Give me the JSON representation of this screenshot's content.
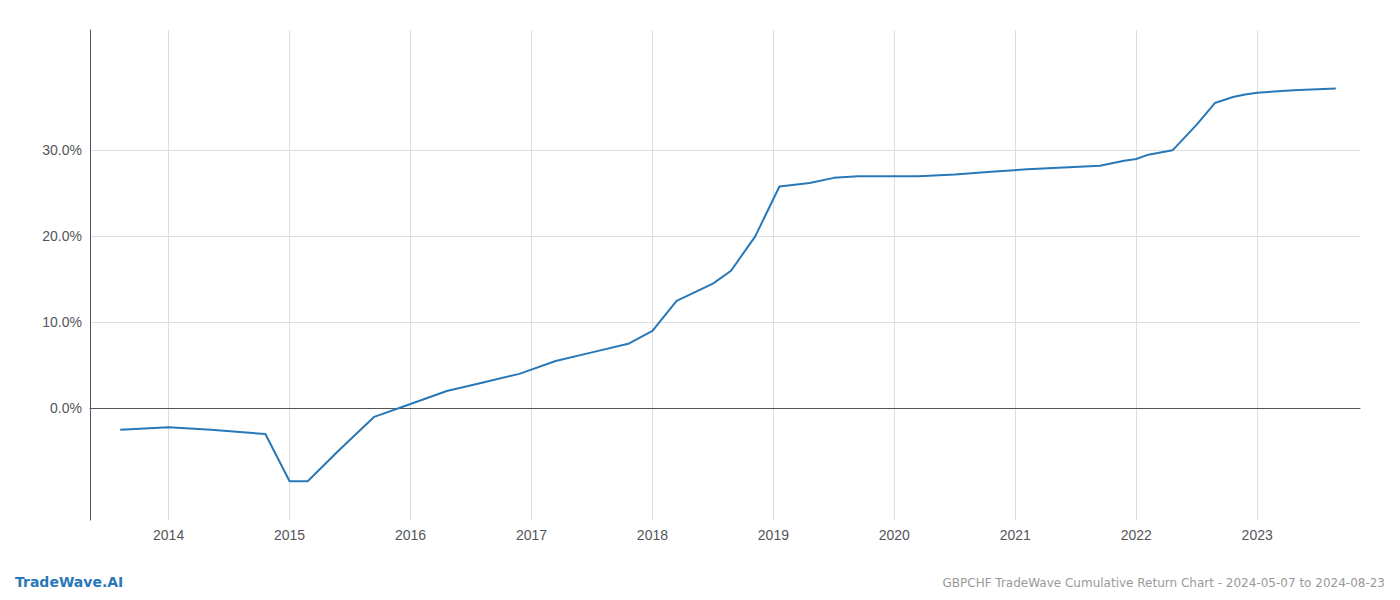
{
  "chart_data": {
    "type": "line",
    "title": "GBPCHF TradeWave Cumulative Return Chart - 2024-05-07 to 2024-08-23",
    "annotations": [
      "TradeWave.AI"
    ],
    "color": "#2878b8",
    "x": [
      2013.6,
      2014.0,
      2014.35,
      2014.8,
      2015.0,
      2015.15,
      2015.4,
      2015.7,
      2016.0,
      2016.3,
      2016.6,
      2016.9,
      2017.2,
      2017.5,
      2017.8,
      2018.0,
      2018.2,
      2018.5,
      2018.65,
      2018.85,
      2019.05,
      2019.3,
      2019.5,
      2019.7,
      2019.9,
      2020.2,
      2020.5,
      2020.8,
      2021.1,
      2021.4,
      2021.7,
      2021.9,
      2022.0,
      2022.1,
      2022.3,
      2022.5,
      2022.65,
      2022.8,
      2022.9,
      2023.0,
      2023.3,
      2023.65
    ],
    "values": [
      -2.5,
      -2.2,
      -2.5,
      -3.0,
      -8.5,
      -8.5,
      -5.0,
      -1.0,
      0.5,
      2.0,
      3.0,
      4.0,
      5.5,
      6.5,
      7.5,
      9.0,
      12.5,
      14.5,
      16.0,
      20.0,
      25.8,
      26.2,
      26.8,
      27.0,
      27.0,
      27.0,
      27.2,
      27.5,
      27.8,
      28.0,
      28.2,
      28.8,
      29.0,
      29.5,
      30.0,
      33.0,
      35.5,
      36.2,
      36.5,
      36.7,
      37.0,
      37.2
    ],
    "xlim": [
      2013.35,
      2023.85
    ],
    "xticks": [
      2014,
      2015,
      2016,
      2017,
      2018,
      2019,
      2020,
      2021,
      2022,
      2023
    ],
    "ylim": [
      -13.0,
      44.0
    ],
    "yticks": [
      {
        "value": 0.0,
        "label": "0.0%"
      },
      {
        "value": 10.0,
        "label": "10.0%"
      },
      {
        "value": 20.0,
        "label": "20.0%"
      },
      {
        "value": 30.0,
        "label": "30.0%"
      }
    ],
    "grid": true
  }
}
